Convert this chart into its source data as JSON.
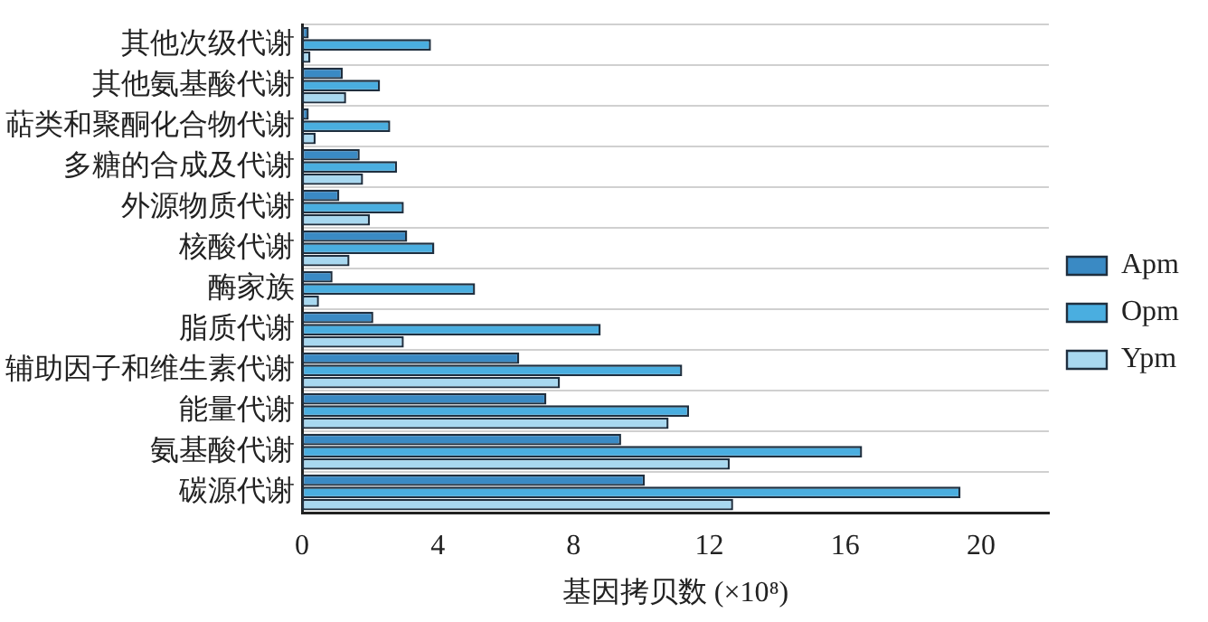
{
  "chart_data": {
    "type": "bar",
    "orientation": "horizontal",
    "xlabel": "基因拷贝数 (×10⁸)",
    "categories": [
      "其他次级代谢",
      "其他氨基酸代谢",
      "萜类和聚酮化合物代谢",
      "多糖的合成及代谢",
      "外源物质代谢",
      "核酸代谢",
      "酶家族",
      "脂质代谢",
      "辅助因子和维生素代谢",
      "能量代谢",
      "氨基酸代谢",
      "碳源代谢"
    ],
    "series": [
      {
        "name": "Apm",
        "color": "#3a8ac4",
        "values": [
          0.2,
          1.2,
          0.2,
          1.7,
          1.1,
          3.1,
          0.9,
          2.1,
          6.4,
          7.2,
          9.4,
          10.1
        ]
      },
      {
        "name": "Opm",
        "color": "#4aaee0",
        "values": [
          3.8,
          2.3,
          2.6,
          2.8,
          3.0,
          3.9,
          5.1,
          8.8,
          11.2,
          11.4,
          16.5,
          19.4
        ]
      },
      {
        "name": "Ypm",
        "color": "#a8d8f0",
        "values": [
          0.25,
          1.3,
          0.4,
          1.8,
          2.0,
          1.4,
          0.5,
          3.0,
          7.6,
          10.8,
          12.6,
          12.7
        ]
      }
    ],
    "xlim": [
      0,
      22
    ],
    "xticks": [
      0,
      4,
      8,
      12,
      16,
      20
    ],
    "grid": "y",
    "legend": "right"
  }
}
